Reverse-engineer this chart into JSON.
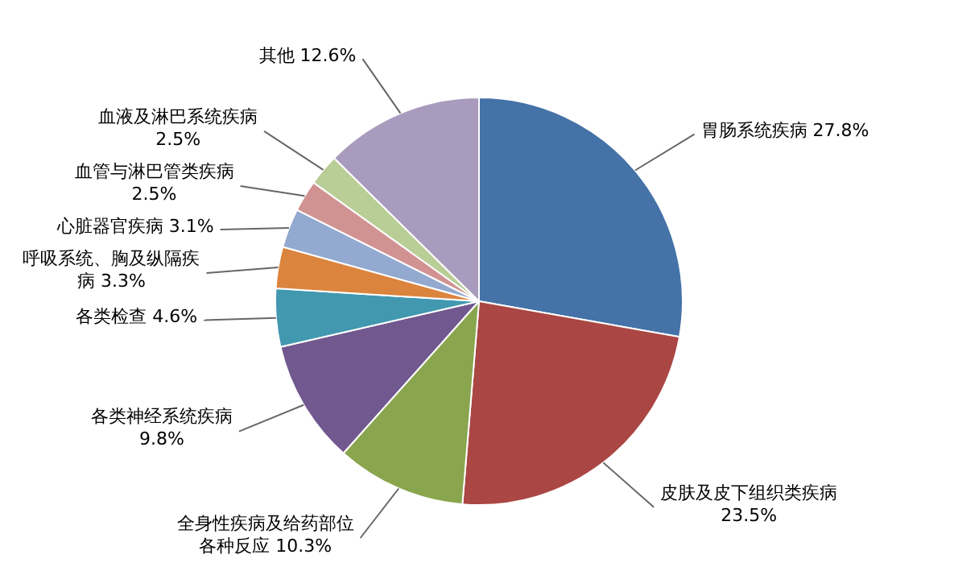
{
  "chart_data": {
    "type": "pie",
    "categories": [
      "胃肠系统疾病",
      "皮肤及皮下组织类疾病",
      "全身性疾病及给药部位各种反应",
      "各类神经系统疾病",
      "各类检查",
      "呼吸系统、胸及纵隔疾病",
      "心脏器官疾病",
      "血管与淋巴管类疾病",
      "血液及淋巴系统疾病",
      "其他"
    ],
    "values": [
      27.8,
      23.5,
      10.3,
      9.8,
      4.6,
      3.3,
      3.1,
      2.5,
      2.5,
      12.6
    ],
    "colors": [
      "#4572a7",
      "#aa4643",
      "#89a54e",
      "#71588f",
      "#4198af",
      "#db843d",
      "#93a9cf",
      "#d19392",
      "#b9cd96",
      "#a99bbd"
    ],
    "value_labels": [
      "27.8%",
      "23.5%",
      "10.3%",
      "9.8%",
      "4.6%",
      "3.3%",
      "3.1%",
      "2.5%",
      "2.5%",
      "12.6%"
    ],
    "legend": false
  }
}
